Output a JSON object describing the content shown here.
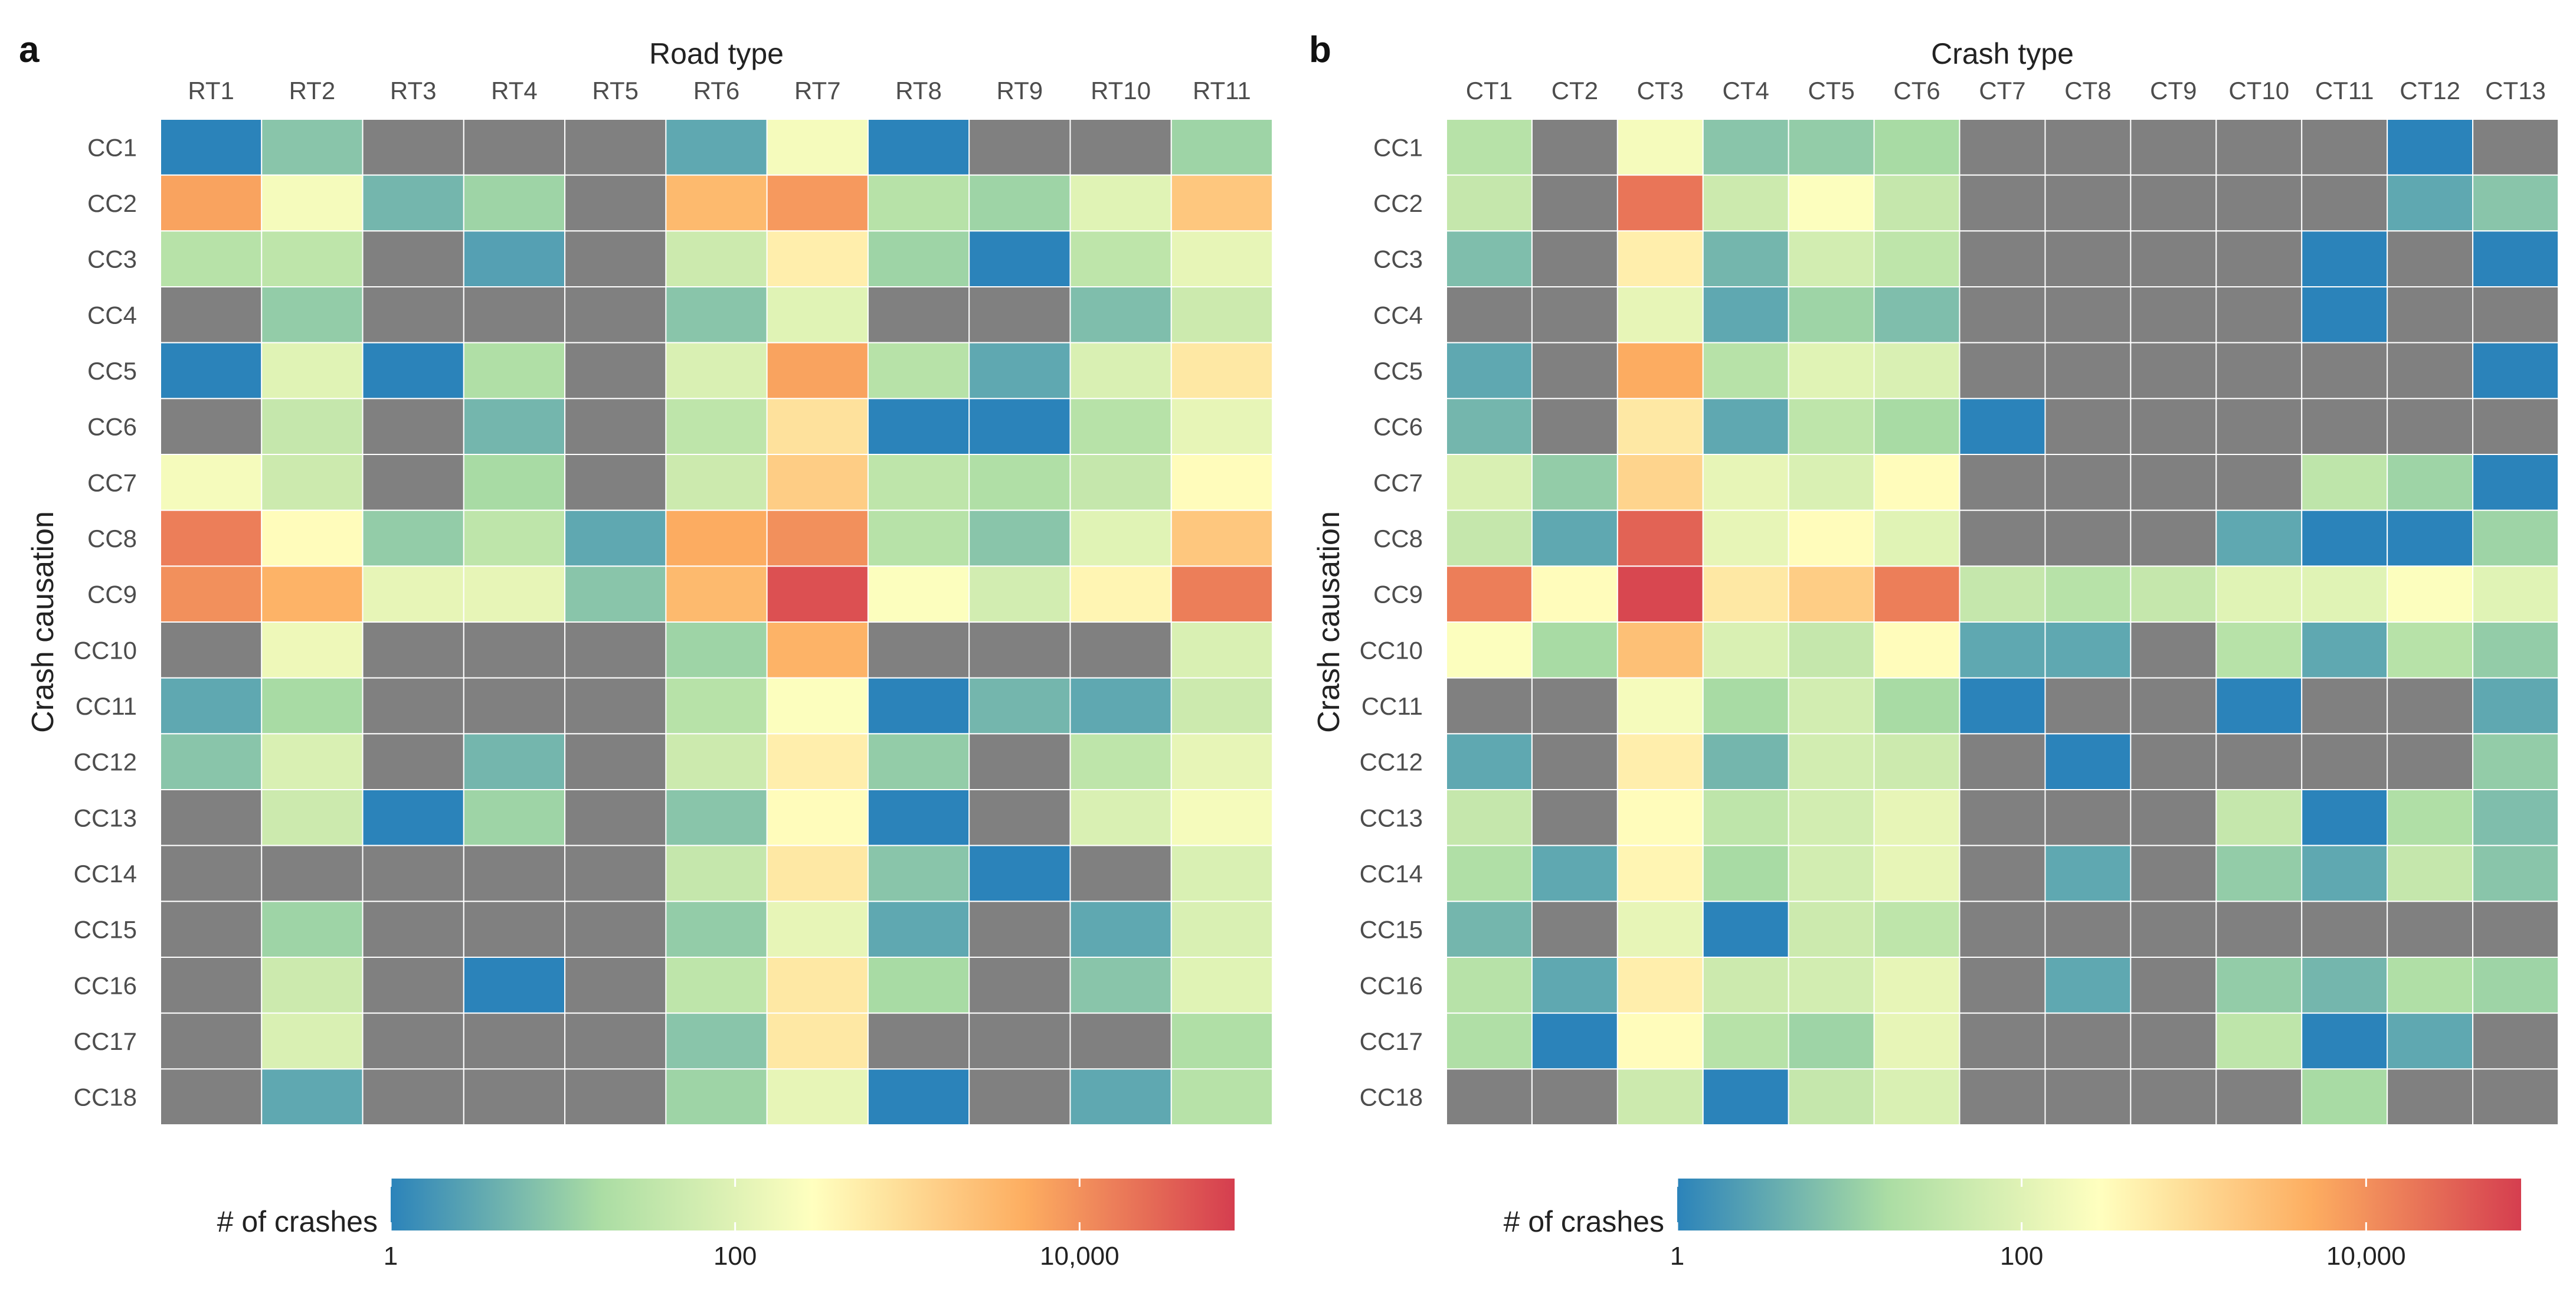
{
  "chart_data": [
    {
      "type": "heatmap",
      "panel_label": "a",
      "title": "Road type",
      "xlabel": "Road type",
      "ylabel": "Crash causation",
      "x_categories": [
        "RT1",
        "RT2",
        "RT3",
        "RT4",
        "RT5",
        "RT6",
        "RT7",
        "RT8",
        "RT9",
        "RT10",
        "RT11"
      ],
      "y_categories": [
        "CC1",
        "CC2",
        "CC3",
        "CC4",
        "CC5",
        "CC6",
        "CC7",
        "CC8",
        "CC9",
        "CC10",
        "CC11",
        "CC12",
        "CC13",
        "CC14",
        "CC15",
        "CC16",
        "CC17",
        "CC18"
      ],
      "value_scale": "log10",
      "missing_value": null,
      "values_log10": [
        [
          0,
          0.9,
          null,
          null,
          null,
          0.5,
          2.3,
          0,
          null,
          null,
          1.1
        ],
        [
          3.8,
          2.3,
          0.7,
          1.1,
          null,
          3.5,
          3.9,
          1.4,
          1.1,
          2,
          3.3
        ],
        [
          1.4,
          1.5,
          null,
          0.4,
          null,
          1.7,
          2.7,
          1.1,
          0,
          1.5,
          2.1
        ],
        [
          null,
          1.0,
          null,
          null,
          null,
          0.9,
          2.0,
          null,
          null,
          0.8,
          1.7
        ],
        [
          0,
          2.0,
          0,
          1.3,
          null,
          1.9,
          3.8,
          1.4,
          0.5,
          1.9,
          2.8
        ],
        [
          null,
          1.6,
          null,
          0.7,
          null,
          1.5,
          2.9,
          0,
          0,
          1.4,
          2.1
        ],
        [
          2.3,
          1.7,
          null,
          1.2,
          null,
          1.7,
          3.2,
          1.5,
          1.3,
          1.6,
          2.5
        ],
        [
          4.2,
          2.5,
          1.0,
          1.5,
          0.5,
          3.7,
          4.0,
          1.4,
          0.9,
          2.0,
          3.3
        ],
        [
          4.0,
          3.6,
          2.1,
          2.1,
          0.9,
          3.5,
          4.7,
          2.4,
          1.8,
          2.6,
          4.2
        ],
        [
          null,
          2.2,
          null,
          null,
          null,
          1.1,
          3.6,
          null,
          null,
          null,
          1.9
        ],
        [
          0.5,
          1.2,
          null,
          null,
          null,
          1.4,
          2.4,
          0,
          0.7,
          0.5,
          1.7
        ],
        [
          0.9,
          1.9,
          null,
          0.7,
          null,
          1.7,
          2.7,
          1.0,
          null,
          1.5,
          2.1
        ],
        [
          null,
          1.7,
          0,
          1.1,
          null,
          0.9,
          2.5,
          0,
          null,
          1.9,
          2.3
        ],
        [
          null,
          null,
          null,
          null,
          null,
          1.6,
          2.8,
          0.9,
          0,
          null,
          1.9
        ],
        [
          null,
          1.1,
          null,
          null,
          null,
          1.0,
          2.1,
          0.5,
          null,
          0.5,
          1.9
        ],
        [
          null,
          1.7,
          null,
          0,
          null,
          1.5,
          2.8,
          1.2,
          null,
          0.9,
          2.0
        ],
        [
          null,
          1.9,
          null,
          null,
          null,
          0.9,
          2.8,
          null,
          null,
          null,
          1.3
        ],
        [
          null,
          0.5,
          null,
          null,
          null,
          1.1,
          2.1,
          0,
          null,
          0.5,
          1.4
        ]
      ],
      "colorbar": {
        "label": "# of crashes",
        "ticks": [
          {
            "value_log10": 0,
            "label": "1"
          },
          {
            "value_log10": 2,
            "label": "100"
          },
          {
            "value_log10": 4,
            "label": "10,000"
          }
        ],
        "range_log10": [
          0,
          4.9
        ]
      },
      "missing_color": "#808080"
    },
    {
      "type": "heatmap",
      "panel_label": "b",
      "title": "Crash type",
      "xlabel": "Crash type",
      "ylabel": "Crash causation",
      "x_categories": [
        "CT1",
        "CT2",
        "CT3",
        "CT4",
        "CT5",
        "CT6",
        "CT7",
        "CT8",
        "CT9",
        "CT10",
        "CT11",
        "CT12",
        "CT13"
      ],
      "y_categories": [
        "CC1",
        "CC2",
        "CC3",
        "CC4",
        "CC5",
        "CC6",
        "CC7",
        "CC8",
        "CC9",
        "CC10",
        "CC11",
        "CC12",
        "CC13",
        "CC14",
        "CC15",
        "CC16",
        "CC17",
        "CC18"
      ],
      "value_scale": "log10",
      "missing_value": null,
      "values_log10": [
        [
          1.4,
          null,
          2.3,
          0.9,
          1.0,
          1.2,
          null,
          null,
          null,
          null,
          null,
          0,
          null
        ],
        [
          1.6,
          null,
          4.3,
          1.7,
          2.4,
          1.6,
          null,
          null,
          null,
          null,
          null,
          0.5,
          0.9
        ],
        [
          0.8,
          null,
          2.7,
          0.7,
          1.8,
          1.5,
          null,
          null,
          null,
          null,
          0,
          null,
          0
        ],
        [
          null,
          null,
          2.1,
          0.5,
          1.1,
          0.8,
          null,
          null,
          null,
          null,
          0,
          null,
          null
        ],
        [
          0.5,
          null,
          3.7,
          1.4,
          2.0,
          1.9,
          null,
          null,
          null,
          null,
          null,
          null,
          0
        ],
        [
          0.7,
          null,
          2.8,
          0.5,
          1.5,
          1.2,
          0,
          null,
          null,
          null,
          null,
          null,
          null
        ],
        [
          1.9,
          1.0,
          3.1,
          2.1,
          1.9,
          2.5,
          null,
          null,
          null,
          null,
          1.5,
          1.1,
          0
        ],
        [
          1.6,
          0.5,
          4.5,
          2.1,
          2.5,
          2.0,
          null,
          null,
          null,
          0.5,
          0,
          0,
          1.1
        ],
        [
          4.2,
          2.5,
          4.8,
          2.8,
          3.2,
          4.2,
          1.6,
          1.4,
          1.6,
          2.0,
          2.0,
          2.4,
          2.0
        ],
        [
          2.4,
          1.2,
          3.4,
          1.9,
          1.6,
          2.5,
          0.5,
          0.5,
          null,
          1.4,
          0.5,
          1.4,
          1.0
        ],
        [
          null,
          null,
          2.3,
          1.2,
          1.8,
          1.2,
          0,
          null,
          null,
          0,
          null,
          null,
          0.5
        ],
        [
          0.5,
          null,
          2.7,
          0.7,
          1.8,
          1.7,
          null,
          0,
          null,
          null,
          null,
          null,
          1.0
        ],
        [
          1.6,
          null,
          2.5,
          1.5,
          1.8,
          2.1,
          null,
          null,
          null,
          1.6,
          0,
          1.3,
          0.8
        ],
        [
          1.3,
          0.5,
          2.6,
          1.2,
          1.8,
          2.1,
          null,
          0.5,
          null,
          1.0,
          0.5,
          1.6,
          0.9
        ],
        [
          0.7,
          null,
          2.1,
          0,
          1.7,
          1.5,
          null,
          null,
          null,
          null,
          null,
          null,
          null
        ],
        [
          1.4,
          0.5,
          2.7,
          1.7,
          1.8,
          2.1,
          null,
          0.5,
          null,
          1.0,
          0.7,
          1.3,
          1.1
        ],
        [
          1.3,
          0,
          2.5,
          1.4,
          1.1,
          2.1,
          null,
          null,
          null,
          1.5,
          0,
          0.5,
          null
        ],
        [
          null,
          null,
          1.7,
          0,
          1.6,
          1.9,
          null,
          null,
          null,
          null,
          1.2,
          null,
          null
        ]
      ],
      "colorbar": {
        "label": "# of crashes",
        "ticks": [
          {
            "value_log10": 0,
            "label": "1"
          },
          {
            "value_log10": 2,
            "label": "100"
          },
          {
            "value_log10": 4,
            "label": "10,000"
          }
        ],
        "range_log10": [
          0,
          4.9
        ]
      },
      "missing_color": "#808080"
    }
  ],
  "palette": {
    "stops": [
      {
        "t": 0.0,
        "color": "#2b83ba"
      },
      {
        "t": 0.25,
        "color": "#abdda4"
      },
      {
        "t": 0.5,
        "color": "#ffffbf"
      },
      {
        "t": 0.75,
        "color": "#fdae61"
      },
      {
        "t": 1.0,
        "color": "#d53e4f"
      }
    ],
    "missing": "#808080",
    "grid": "#ffffff"
  }
}
